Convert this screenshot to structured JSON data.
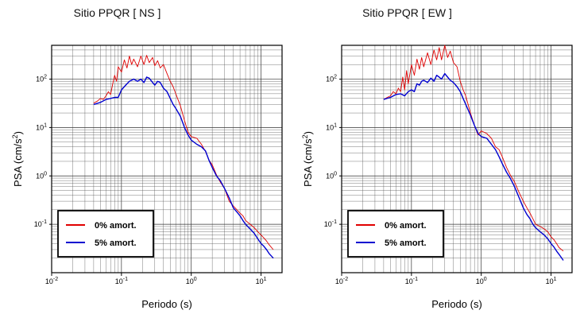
{
  "chart_data": [
    {
      "type": "line",
      "title": "Sitio PPQR [ NS ]",
      "xlabel": "Periodo (s)",
      "ylabel": "PSA (cm/s²)",
      "xscale": "log",
      "yscale": "log",
      "xlim": [
        0.01,
        20
      ],
      "ylim": [
        0.01,
        500
      ],
      "grid": true,
      "legend_position": "bottom-left",
      "x_ticks": [
        "10-2",
        "10-1",
        "100",
        "101"
      ],
      "y_ticks": [
        "10-1",
        "100",
        "101",
        "102"
      ],
      "series": [
        {
          "name": "0% amort.",
          "color": "#e00000",
          "points": [
            [
              0.04,
              32
            ],
            [
              0.045,
              35
            ],
            [
              0.05,
              40
            ],
            [
              0.055,
              38
            ],
            [
              0.06,
              45
            ],
            [
              0.065,
              55
            ],
            [
              0.07,
              48
            ],
            [
              0.075,
              80
            ],
            [
              0.08,
              120
            ],
            [
              0.085,
              90
            ],
            [
              0.09,
              180
            ],
            [
              0.1,
              140
            ],
            [
              0.11,
              250
            ],
            [
              0.12,
              170
            ],
            [
              0.13,
              300
            ],
            [
              0.14,
              200
            ],
            [
              0.15,
              260
            ],
            [
              0.17,
              180
            ],
            [
              0.19,
              300
            ],
            [
              0.21,
              200
            ],
            [
              0.23,
              310
            ],
            [
              0.25,
              220
            ],
            [
              0.28,
              280
            ],
            [
              0.3,
              190
            ],
            [
              0.33,
              240
            ],
            [
              0.36,
              170
            ],
            [
              0.4,
              200
            ],
            [
              0.45,
              130
            ],
            [
              0.5,
              90
            ],
            [
              0.55,
              70
            ],
            [
              0.6,
              50
            ],
            [
              0.7,
              28
            ],
            [
              0.8,
              14
            ],
            [
              0.9,
              8
            ],
            [
              1.0,
              6.5
            ],
            [
              1.2,
              6
            ],
            [
              1.4,
              4.5
            ],
            [
              1.6,
              3.2
            ],
            [
              1.8,
              2.1
            ],
            [
              2.0,
              1.7
            ],
            [
              2.3,
              1.05
            ],
            [
              2.6,
              0.75
            ],
            [
              3.0,
              0.55
            ],
            [
              3.5,
              0.3
            ],
            [
              4.0,
              0.24
            ],
            [
              4.5,
              0.2
            ],
            [
              5,
              0.17
            ],
            [
              5.5,
              0.15
            ],
            [
              6,
              0.12
            ],
            [
              7,
              0.1
            ],
            [
              8,
              0.085
            ],
            [
              9,
              0.07
            ],
            [
              10,
              0.06
            ],
            [
              11,
              0.052
            ],
            [
              12,
              0.045
            ],
            [
              13,
              0.038
            ],
            [
              15,
              0.03
            ]
          ]
        },
        {
          "name": "5% amort.",
          "color": "#0000d0",
          "points": [
            [
              0.04,
              30
            ],
            [
              0.05,
              33
            ],
            [
              0.06,
              38
            ],
            [
              0.07,
              40
            ],
            [
              0.08,
              42
            ],
            [
              0.09,
              42
            ],
            [
              0.1,
              60
            ],
            [
              0.11,
              70
            ],
            [
              0.12,
              80
            ],
            [
              0.13,
              90
            ],
            [
              0.14,
              95
            ],
            [
              0.15,
              100
            ],
            [
              0.17,
              90
            ],
            [
              0.19,
              100
            ],
            [
              0.21,
              85
            ],
            [
              0.23,
              110
            ],
            [
              0.25,
              105
            ],
            [
              0.28,
              85
            ],
            [
              0.3,
              75
            ],
            [
              0.33,
              90
            ],
            [
              0.36,
              85
            ],
            [
              0.4,
              65
            ],
            [
              0.45,
              55
            ],
            [
              0.5,
              40
            ],
            [
              0.55,
              30
            ],
            [
              0.6,
              25
            ],
            [
              0.7,
              17
            ],
            [
              0.8,
              10
            ],
            [
              0.9,
              7
            ],
            [
              1.0,
              5.5
            ],
            [
              1.2,
              4.5
            ],
            [
              1.4,
              4
            ],
            [
              1.6,
              3.3
            ],
            [
              1.8,
              2.1
            ],
            [
              2.0,
              1.5
            ],
            [
              2.3,
              1.0
            ],
            [
              2.6,
              0.8
            ],
            [
              3.0,
              0.55
            ],
            [
              3.5,
              0.35
            ],
            [
              4.0,
              0.22
            ],
            [
              4.5,
              0.18
            ],
            [
              5,
              0.15
            ],
            [
              5.5,
              0.12
            ],
            [
              6,
              0.1
            ],
            [
              7,
              0.08
            ],
            [
              8,
              0.065
            ],
            [
              9,
              0.05
            ],
            [
              10,
              0.04
            ],
            [
              11,
              0.035
            ],
            [
              12,
              0.03
            ],
            [
              13,
              0.025
            ],
            [
              15,
              0.02
            ]
          ]
        }
      ]
    },
    {
      "type": "line",
      "title": "Sitio PPQR [ EW ]",
      "xlabel": "Periodo (s)",
      "ylabel": "PSA (cm/s²)",
      "xscale": "log",
      "yscale": "log",
      "xlim": [
        0.01,
        20
      ],
      "ylim": [
        0.01,
        500
      ],
      "grid": true,
      "legend_position": "bottom-left",
      "x_ticks": [
        "10-2",
        "10-1",
        "100",
        "101"
      ],
      "y_ticks": [
        "10-1",
        "100",
        "101",
        "102"
      ],
      "series": [
        {
          "name": "0% amort.",
          "color": "#e00000",
          "points": [
            [
              0.04,
              38
            ],
            [
              0.045,
              42
            ],
            [
              0.05,
              45
            ],
            [
              0.055,
              55
            ],
            [
              0.06,
              50
            ],
            [
              0.065,
              65
            ],
            [
              0.07,
              55
            ],
            [
              0.075,
              110
            ],
            [
              0.08,
              60
            ],
            [
              0.085,
              150
            ],
            [
              0.09,
              80
            ],
            [
              0.1,
              200
            ],
            [
              0.11,
              120
            ],
            [
              0.12,
              260
            ],
            [
              0.13,
              160
            ],
            [
              0.14,
              280
            ],
            [
              0.15,
              180
            ],
            [
              0.17,
              350
            ],
            [
              0.19,
              200
            ],
            [
              0.21,
              400
            ],
            [
              0.23,
              250
            ],
            [
              0.25,
              450
            ],
            [
              0.27,
              250
            ],
            [
              0.3,
              500
            ],
            [
              0.33,
              280
            ],
            [
              0.36,
              380
            ],
            [
              0.4,
              220
            ],
            [
              0.45,
              180
            ],
            [
              0.5,
              90
            ],
            [
              0.55,
              60
            ],
            [
              0.6,
              45
            ],
            [
              0.7,
              20
            ],
            [
              0.8,
              11
            ],
            [
              0.9,
              7
            ],
            [
              1.0,
              8.5
            ],
            [
              1.2,
              7.5
            ],
            [
              1.4,
              6
            ],
            [
              1.6,
              4
            ],
            [
              1.8,
              3.5
            ],
            [
              2.0,
              2.5
            ],
            [
              2.3,
              1.5
            ],
            [
              2.6,
              1.05
            ],
            [
              3.0,
              0.75
            ],
            [
              3.5,
              0.45
            ],
            [
              4.0,
              0.3
            ],
            [
              4.5,
              0.22
            ],
            [
              5,
              0.17
            ],
            [
              5.5,
              0.13
            ],
            [
              6,
              0.1
            ],
            [
              7,
              0.09
            ],
            [
              8,
              0.08
            ],
            [
              9,
              0.07
            ],
            [
              10,
              0.055
            ],
            [
              11,
              0.048
            ],
            [
              12,
              0.04
            ],
            [
              13,
              0.033
            ],
            [
              15,
              0.028
            ]
          ]
        },
        {
          "name": "5% amort.",
          "color": "#0000d0",
          "points": [
            [
              0.04,
              38
            ],
            [
              0.05,
              42
            ],
            [
              0.06,
              48
            ],
            [
              0.07,
              50
            ],
            [
              0.08,
              45
            ],
            [
              0.09,
              55
            ],
            [
              0.1,
              60
            ],
            [
              0.11,
              55
            ],
            [
              0.12,
              80
            ],
            [
              0.13,
              75
            ],
            [
              0.14,
              90
            ],
            [
              0.15,
              95
            ],
            [
              0.17,
              85
            ],
            [
              0.19,
              105
            ],
            [
              0.21,
              90
            ],
            [
              0.23,
              120
            ],
            [
              0.25,
              110
            ],
            [
              0.27,
              100
            ],
            [
              0.3,
              130
            ],
            [
              0.33,
              110
            ],
            [
              0.36,
              95
            ],
            [
              0.4,
              85
            ],
            [
              0.45,
              70
            ],
            [
              0.5,
              55
            ],
            [
              0.55,
              40
            ],
            [
              0.6,
              30
            ],
            [
              0.7,
              18
            ],
            [
              0.8,
              11
            ],
            [
              0.9,
              7.5
            ],
            [
              1.0,
              6.5
            ],
            [
              1.2,
              6
            ],
            [
              1.4,
              4.5
            ],
            [
              1.6,
              3.5
            ],
            [
              1.8,
              2.5
            ],
            [
              2.0,
              1.8
            ],
            [
              2.3,
              1.2
            ],
            [
              2.6,
              0.9
            ],
            [
              3.0,
              0.6
            ],
            [
              3.5,
              0.35
            ],
            [
              4.0,
              0.22
            ],
            [
              4.5,
              0.16
            ],
            [
              5,
              0.13
            ],
            [
              5.5,
              0.1
            ],
            [
              6,
              0.085
            ],
            [
              7,
              0.07
            ],
            [
              8,
              0.06
            ],
            [
              9,
              0.05
            ],
            [
              10,
              0.04
            ],
            [
              11,
              0.034
            ],
            [
              12,
              0.028
            ],
            [
              13,
              0.024
            ],
            [
              15,
              0.018
            ]
          ]
        }
      ]
    }
  ]
}
